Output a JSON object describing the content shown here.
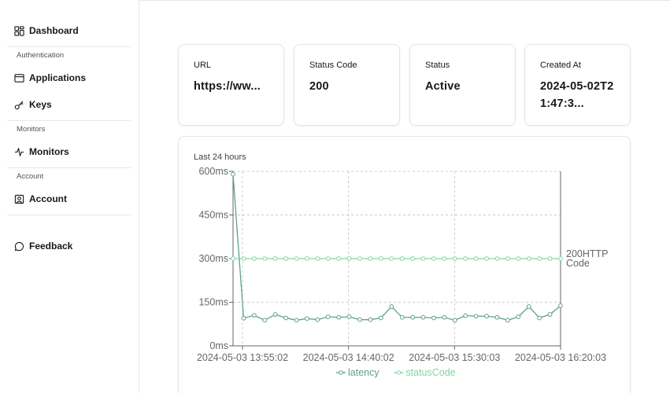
{
  "sidebar": {
    "dashboard": "Dashboard",
    "sections": {
      "authentication": "Authentication",
      "monitors": "Monitors",
      "account": "Account"
    },
    "items": {
      "applications": "Applications",
      "keys": "Keys",
      "monitors": "Monitors",
      "account": "Account",
      "feedback": "Feedback"
    }
  },
  "cards": {
    "url": {
      "label": "URL",
      "value": "https://ww..."
    },
    "status_code": {
      "label": "Status Code",
      "value": "200"
    },
    "status": {
      "label": "Status",
      "value": "Active"
    },
    "created_at": {
      "label": "Created At",
      "value": "2024-05-02T21:47:3..."
    }
  },
  "chart_title": "Last 24 hours",
  "colors": {
    "latency": "#5f9f90",
    "statusCode": "#86d3a6",
    "grid": "#cccccc",
    "axis": "#666666"
  },
  "chart_data": {
    "type": "line",
    "title": "Last 24 hours",
    "y_ticks": [
      "600ms",
      "450ms",
      "300ms",
      "150ms",
      "0ms"
    ],
    "ylim": [
      0,
      600
    ],
    "x_ticks": [
      "2024-05-03 13:55:02",
      "2024-05-03 14:40:02",
      "2024-05-03 15:30:03",
      "2024-05-03 16:20:03"
    ],
    "right_axis_label": "200HTTP Code",
    "grid": true,
    "legend_position": "bottom",
    "series": [
      {
        "name": "latency",
        "values": [
          590,
          95,
          105,
          88,
          108,
          96,
          88,
          94,
          90,
          100,
          98,
          100,
          90,
          90,
          96,
          135,
          98,
          98,
          98,
          96,
          98,
          88,
          104,
          102,
          102,
          98,
          88,
          100,
          135,
          96,
          108,
          138
        ]
      },
      {
        "name": "statusCode",
        "values": [
          200,
          200,
          200,
          200,
          200,
          200,
          200,
          200,
          200,
          200,
          200,
          200,
          200,
          200,
          200,
          200,
          200,
          200,
          200,
          200,
          200,
          200,
          200,
          200,
          200,
          200,
          200,
          200,
          200,
          200,
          200,
          200
        ]
      }
    ]
  }
}
